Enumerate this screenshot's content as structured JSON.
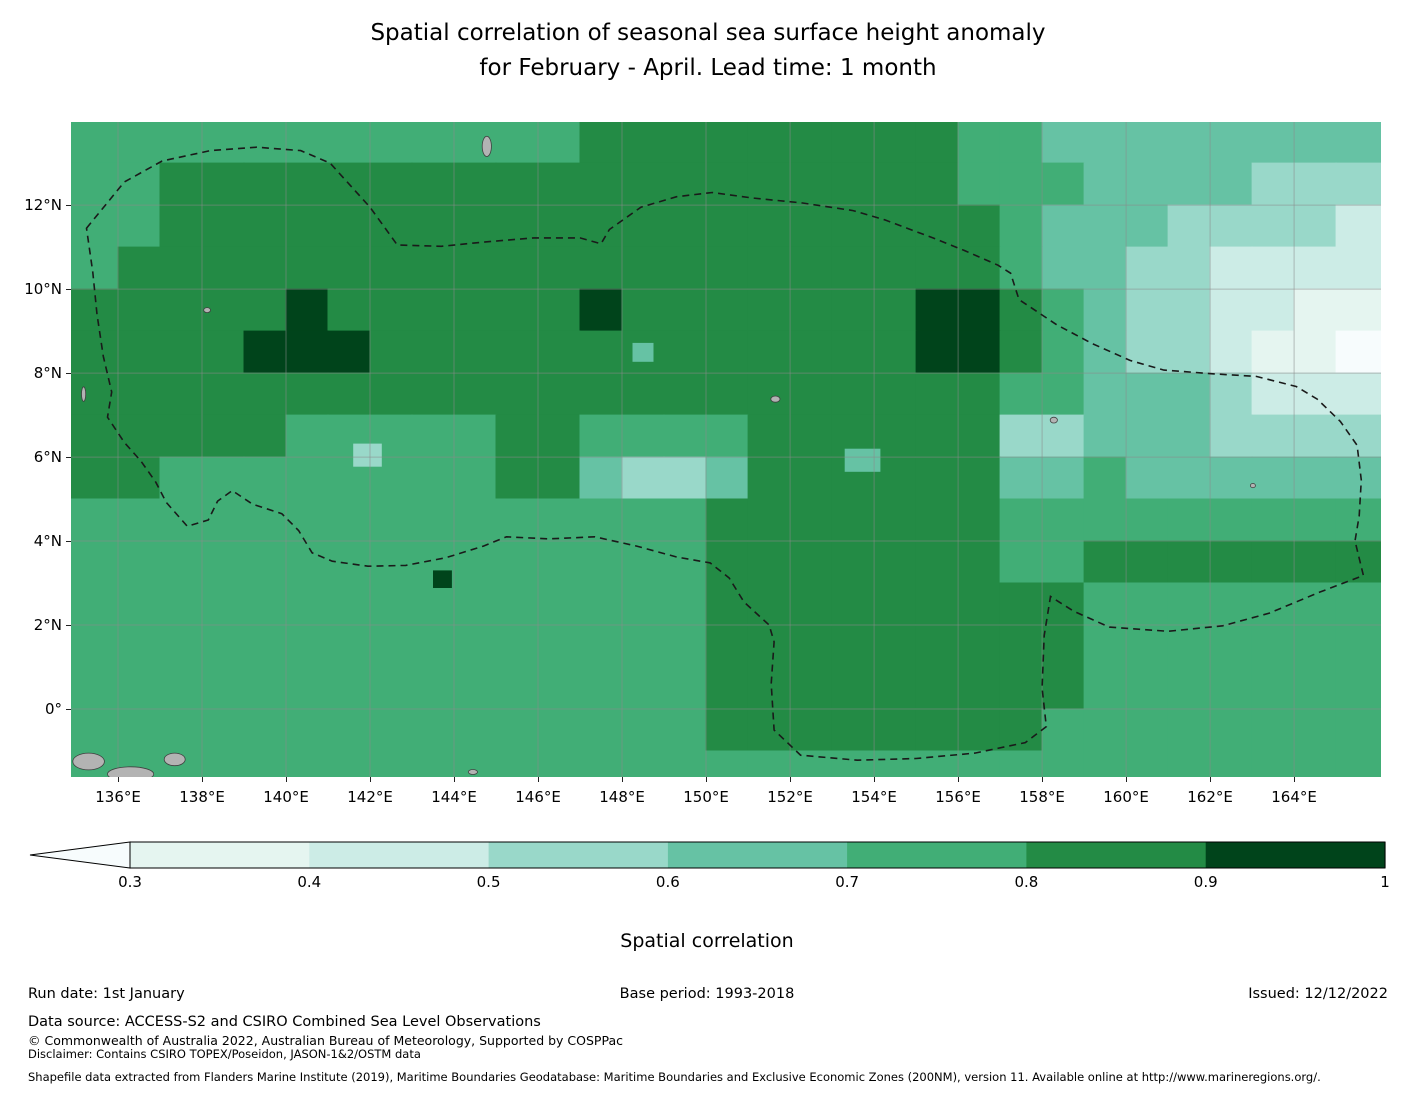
{
  "title": {
    "line1": "Spatial correlation of seasonal sea surface height anomaly",
    "line2": "for February - April. Lead time: 1 month"
  },
  "footer": {
    "run_date": "Run date: 1st January",
    "base_period": "Base period: 1993-2018",
    "issued": "Issued: 12/12/2022",
    "data_source": "Data source: ACCESS-S2 and CSIRO Combined Sea Level Observations",
    "copyright": "© Commonwealth of Australia 2022, Australian Bureau of Meteorology, Supported by COSPPac",
    "disclaimer": "Disclaimer: Contains CSIRO TOPEX/Poseidon, JASON-1&2/OSTM data",
    "shapefile": "Shapefile data extracted from Flanders Marine Institute (2019), Maritime Boundaries Geodatabase: Maritime Boundaries and Exclusive Economic Zones (200NM), version 11. Available online at http://www.marineregions.org/."
  },
  "chart_data": {
    "type": "heatmap",
    "title": "Spatial correlation of seasonal sea surface height anomaly for February - April. Lead time: 1 month",
    "region": "Western tropical Pacific (Federated States of Micronesia EEZ shown dashed)",
    "colorbar": {
      "label": "Spatial correlation",
      "ticks": [
        "0.3",
        "0.4",
        "0.5",
        "0.6",
        "0.7",
        "0.8",
        "0.9",
        "1"
      ],
      "tick_values": [
        0.3,
        0.4,
        0.5,
        0.6,
        0.7,
        0.8,
        0.9,
        1.0
      ],
      "extend": "min"
    },
    "bin_edges": [
      0.3,
      0.4,
      0.5,
      0.6,
      0.7,
      0.8,
      0.9,
      1.0
    ],
    "bin_labels": [
      "<0.3",
      "0.3-0.4",
      "0.4-0.5",
      "0.5-0.6",
      "0.6-0.7",
      "0.7-0.8",
      "0.8-0.9",
      "0.9-1.0"
    ],
    "palette": [
      "#f7fcfd",
      "#e5f5f0",
      "#ccece6",
      "#99d8c9",
      "#66c2a4",
      "#41ae76",
      "#238b45",
      "#00441b"
    ],
    "extent": {
      "lon_min": 134.88,
      "lon_max": 166.07,
      "lat_min": -1.62,
      "lat_max": 13.98
    },
    "x_ticks": [
      {
        "value": 136,
        "label": "136°E"
      },
      {
        "value": 138,
        "label": "138°E"
      },
      {
        "value": 140,
        "label": "140°E"
      },
      {
        "value": 142,
        "label": "142°E"
      },
      {
        "value": 144,
        "label": "144°E"
      },
      {
        "value": 146,
        "label": "146°E"
      },
      {
        "value": 148,
        "label": "148°E"
      },
      {
        "value": 150,
        "label": "150°E"
      },
      {
        "value": 152,
        "label": "152°E"
      },
      {
        "value": 154,
        "label": "154°E"
      },
      {
        "value": 156,
        "label": "156°E"
      },
      {
        "value": 158,
        "label": "158°E"
      },
      {
        "value": 160,
        "label": "160°E"
      },
      {
        "value": 162,
        "label": "162°E"
      },
      {
        "value": 164,
        "label": "164°E"
      }
    ],
    "y_ticks": [
      {
        "value": 12,
        "label": "12°N"
      },
      {
        "value": 10,
        "label": "10°N"
      },
      {
        "value": 8,
        "label": "8°N"
      },
      {
        "value": 6,
        "label": "6°N"
      },
      {
        "value": 4,
        "label": "4°N"
      },
      {
        "value": 2,
        "label": "2°N"
      },
      {
        "value": 0,
        "label": "0°"
      }
    ],
    "grid": {
      "comment": "correlation bin index per 1-degree cell; digit d means bin_labels[d]; row 0 = lat 13..14N, col 0 = lon 135..136E; rows are run-length encoded as digit*count",
      "lon0": 135,
      "lat0": 14,
      "cell_deg": 1,
      "rows_rle": [
        "5*12 6*9 5*2 4*8",
        "5*2 6*19 5*3 4*4 3*3",
        "5*2 6*20 5*1 4*3 3*4 2*1",
        "5*1 6*21 5*1 4*2 3*2 2*4",
        "6*5 7*1 6*6 7*1 6*7 7*2 6*1 5*1 4*1 3*2 2*2 1*2",
        "6*4 7*3 6*13 7*2 6*1 5*1 4*1 3*2 2*1 1*2 0*1",
        "6*22 5*2 4*3 3*1 2*3",
        "6*5 5*5 6*2 5*4 6*6 3*2 4*3 3*4",
        "6*2 5*8 6*2 4*1 3*2 4*1 6*6 4*2 5*1 4*6",
        "5*15 6*7 5*9",
        "5*15 6*7 5*2 6*7",
        "5*15 6*9 5*7",
        "5*15 6*9 5*7",
        "5*15 6*9 5*7",
        "5*15 6*8 5*8",
        "5*31"
      ]
    },
    "spots": [
      {
        "lon": 141.6,
        "lat": 6.32,
        "w": 0.68,
        "h": 0.55,
        "level": 3
      },
      {
        "lon": 148.25,
        "lat": 8.72,
        "w": 0.5,
        "h": 0.45,
        "level": 4
      },
      {
        "lon": 143.5,
        "lat": 3.3,
        "w": 0.45,
        "h": 0.42,
        "level": 7
      },
      {
        "lon": 153.3,
        "lat": 6.2,
        "w": 0.85,
        "h": 0.55,
        "level": 4
      }
    ],
    "islands": [
      {
        "name": "guam",
        "lon": 144.78,
        "lat": 13.4,
        "w": 0.22,
        "h": 0.48
      },
      {
        "name": "yap",
        "lon": 138.12,
        "lat": 9.5,
        "w": 0.16,
        "h": 0.12
      },
      {
        "name": "palau",
        "lon": 135.18,
        "lat": 7.5,
        "w": 0.1,
        "h": 0.35
      },
      {
        "name": "chuuk",
        "lon": 151.65,
        "lat": 7.38,
        "w": 0.22,
        "h": 0.15
      },
      {
        "name": "pohnpei",
        "lon": 158.28,
        "lat": 6.88,
        "w": 0.17,
        "h": 0.14
      },
      {
        "name": "kosrae",
        "lon": 163.02,
        "lat": 5.32,
        "w": 0.12,
        "h": 0.1
      },
      {
        "name": "coast-west-1",
        "lon": 135.3,
        "lat": -1.25,
        "w": 0.75,
        "h": 0.4
      },
      {
        "name": "coast-west-2",
        "lon": 136.3,
        "lat": -1.55,
        "w": 1.1,
        "h": 0.35
      },
      {
        "name": "coast-west-3",
        "lon": 137.35,
        "lat": -1.2,
        "w": 0.5,
        "h": 0.3
      },
      {
        "name": "islet-south-1",
        "lon": 144.45,
        "lat": -1.5,
        "w": 0.22,
        "h": 0.12
      },
      {
        "name": "islet-south-2",
        "lon": 149.9,
        "lat": -1.95,
        "w": 0.35,
        "h": 0.2
      }
    ],
    "eez_boundary": [
      [
        135.25,
        11.45
      ],
      [
        136.15,
        12.55
      ],
      [
        137.05,
        13.05
      ],
      [
        138.2,
        13.3
      ],
      [
        139.3,
        13.38
      ],
      [
        140.35,
        13.3
      ],
      [
        141.05,
        13.0
      ],
      [
        142.0,
        11.95
      ],
      [
        142.65,
        11.05
      ],
      [
        143.7,
        11.02
      ],
      [
        144.7,
        11.12
      ],
      [
        145.9,
        11.22
      ],
      [
        147.0,
        11.22
      ],
      [
        147.5,
        11.08
      ],
      [
        147.7,
        11.42
      ],
      [
        148.45,
        11.95
      ],
      [
        149.3,
        12.2
      ],
      [
        150.15,
        12.3
      ],
      [
        151.1,
        12.17
      ],
      [
        152.3,
        12.05
      ],
      [
        153.5,
        11.87
      ],
      [
        154.25,
        11.65
      ],
      [
        155.4,
        11.22
      ],
      [
        156.15,
        10.92
      ],
      [
        156.95,
        10.57
      ],
      [
        157.25,
        10.38
      ],
      [
        157.45,
        9.75
      ],
      [
        158.35,
        9.15
      ],
      [
        159.2,
        8.7
      ],
      [
        160.1,
        8.3
      ],
      [
        160.9,
        8.07
      ],
      [
        162.1,
        7.98
      ],
      [
        163.1,
        7.92
      ],
      [
        164.05,
        7.68
      ],
      [
        164.55,
        7.38
      ],
      [
        165.1,
        6.85
      ],
      [
        165.5,
        6.28
      ],
      [
        165.6,
        5.45
      ],
      [
        165.55,
        4.6
      ],
      [
        165.45,
        4.0
      ],
      [
        165.65,
        3.18
      ],
      [
        164.6,
        2.78
      ],
      [
        163.4,
        2.28
      ],
      [
        162.3,
        1.98
      ],
      [
        161.0,
        1.85
      ],
      [
        159.6,
        1.95
      ],
      [
        158.75,
        2.33
      ],
      [
        158.2,
        2.68
      ],
      [
        158.05,
        1.75
      ],
      [
        158.0,
        0.5
      ],
      [
        158.1,
        -0.42
      ],
      [
        157.6,
        -0.8
      ],
      [
        156.4,
        -1.05
      ],
      [
        155.0,
        -1.18
      ],
      [
        153.6,
        -1.22
      ],
      [
        152.25,
        -1.1
      ],
      [
        151.62,
        -0.5
      ],
      [
        151.55,
        0.6
      ],
      [
        151.62,
        1.6
      ],
      [
        151.5,
        2.0
      ],
      [
        150.9,
        2.55
      ],
      [
        150.55,
        3.12
      ],
      [
        150.1,
        3.48
      ],
      [
        149.3,
        3.62
      ],
      [
        148.35,
        3.88
      ],
      [
        147.35,
        4.1
      ],
      [
        146.25,
        4.05
      ],
      [
        145.25,
        4.1
      ],
      [
        144.7,
        3.88
      ],
      [
        143.8,
        3.6
      ],
      [
        142.85,
        3.42
      ],
      [
        141.95,
        3.4
      ],
      [
        141.1,
        3.52
      ],
      [
        140.62,
        3.72
      ],
      [
        140.3,
        4.25
      ],
      [
        139.9,
        4.65
      ],
      [
        139.2,
        4.88
      ],
      [
        138.72,
        5.2
      ],
      [
        138.37,
        4.95
      ],
      [
        138.15,
        4.5
      ],
      [
        137.65,
        4.35
      ],
      [
        137.15,
        4.92
      ],
      [
        136.9,
        5.4
      ],
      [
        136.55,
        5.9
      ],
      [
        136.15,
        6.35
      ],
      [
        135.75,
        6.95
      ],
      [
        135.85,
        7.55
      ],
      [
        135.65,
        8.4
      ],
      [
        135.5,
        9.4
      ],
      [
        135.4,
        10.4
      ]
    ],
    "style": {
      "graticule_color": "#8a8a8a",
      "land_fill": "#b3b3b3",
      "land_stroke": "#404040",
      "boundary_color": "#1a1a1a"
    }
  }
}
